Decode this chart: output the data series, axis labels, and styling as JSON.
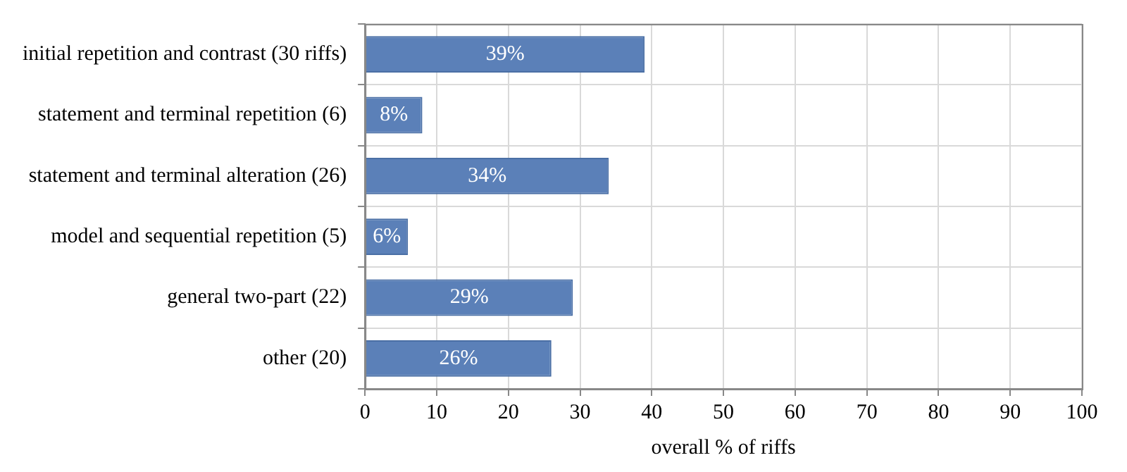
{
  "chart_data": {
    "type": "bar",
    "orientation": "horizontal",
    "xlabel": "overall % of riffs",
    "categories": [
      "initial repetition and contrast (30 riffs)",
      "statement and terminal repetition (6)",
      "statement and terminal alteration (26)",
      "model and sequential repetition (5)",
      "general two-part (22)",
      "other (20)"
    ],
    "values": [
      39,
      8,
      34,
      6,
      29,
      26
    ],
    "value_labels": [
      "39%",
      "8%",
      "34%",
      "6%",
      "29%",
      "26%"
    ],
    "color": "#5b80b8",
    "xlim": [
      0,
      100
    ],
    "xticks": [
      0,
      10,
      20,
      30,
      40,
      50,
      60,
      70,
      80,
      90,
      100
    ],
    "grid": true,
    "legend": false
  }
}
